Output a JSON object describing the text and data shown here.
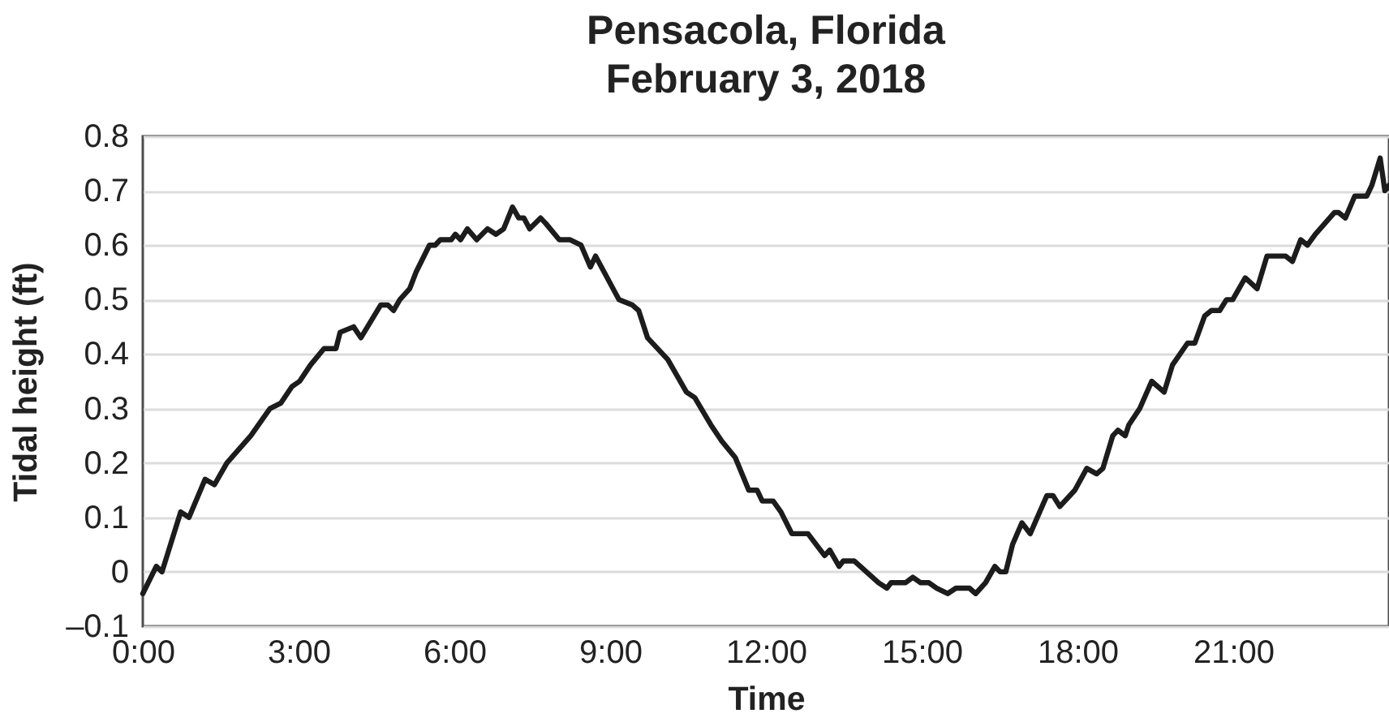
{
  "chart_data": {
    "type": "line",
    "title": "Pensacola, Florida",
    "subtitle": "February 3, 2018",
    "xlabel": "Time",
    "ylabel": "Tidal height (ft)",
    "x": [
      0.0,
      0.26,
      0.37,
      0.73,
      0.89,
      1.2,
      1.38,
      1.62,
      2.08,
      2.45,
      2.66,
      2.87,
      3.02,
      3.23,
      3.49,
      3.72,
      3.8,
      4.06,
      4.2,
      4.58,
      4.72,
      4.83,
      4.95,
      5.14,
      5.26,
      5.52,
      5.63,
      5.73,
      5.94,
      6.02,
      6.12,
      6.25,
      6.43,
      6.64,
      6.8,
      6.95,
      7.12,
      7.24,
      7.34,
      7.45,
      7.66,
      7.76,
      8.02,
      8.23,
      8.44,
      8.62,
      8.72,
      9.17,
      9.43,
      9.55,
      9.72,
      10.11,
      10.47,
      10.63,
      10.94,
      11.15,
      11.41,
      11.67,
      11.83,
      11.93,
      12.14,
      12.29,
      12.5,
      12.81,
      13.13,
      13.23,
      13.41,
      13.49,
      13.7,
      14.17,
      14.33,
      14.41,
      14.69,
      14.83,
      14.98,
      15.14,
      15.29,
      15.5,
      15.66,
      15.92,
      16.04,
      16.23,
      16.41,
      16.51,
      16.62,
      16.75,
      16.93,
      17.09,
      17.41,
      17.53,
      17.66,
      17.95,
      18.18,
      18.37,
      18.49,
      18.68,
      18.78,
      18.92,
      18.99,
      19.2,
      19.43,
      19.67,
      19.83,
      20.12,
      20.26,
      20.45,
      20.58,
      20.74,
      20.87,
      20.99,
      21.23,
      21.46,
      21.65,
      22.01,
      22.14,
      22.3,
      22.43,
      22.58,
      22.95,
      23.03,
      23.16,
      23.34,
      23.57,
      23.67,
      23.83,
      23.92,
      24.0
    ],
    "series": [
      {
        "color": "#1c1c1c",
        "values": [
          -0.04,
          0.01,
          0.0,
          0.11,
          0.1,
          0.17,
          0.16,
          0.2,
          0.25,
          0.3,
          0.31,
          0.34,
          0.35,
          0.38,
          0.41,
          0.41,
          0.44,
          0.45,
          0.43,
          0.49,
          0.49,
          0.48,
          0.5,
          0.52,
          0.55,
          0.6,
          0.6,
          0.61,
          0.61,
          0.62,
          0.61,
          0.63,
          0.61,
          0.63,
          0.62,
          0.63,
          0.67,
          0.65,
          0.65,
          0.63,
          0.65,
          0.64,
          0.61,
          0.61,
          0.6,
          0.56,
          0.58,
          0.5,
          0.49,
          0.48,
          0.43,
          0.39,
          0.33,
          0.32,
          0.27,
          0.24,
          0.21,
          0.15,
          0.15,
          0.13,
          0.13,
          0.11,
          0.07,
          0.07,
          0.03,
          0.04,
          0.01,
          0.02,
          0.02,
          -0.02,
          -0.03,
          -0.02,
          -0.02,
          -0.01,
          -0.02,
          -0.02,
          -0.03,
          -0.04,
          -0.03,
          -0.03,
          -0.04,
          -0.02,
          0.01,
          0.0,
          0.0,
          0.05,
          0.09,
          0.07,
          0.14,
          0.14,
          0.12,
          0.15,
          0.19,
          0.18,
          0.19,
          0.25,
          0.26,
          0.25,
          0.27,
          0.3,
          0.35,
          0.33,
          0.38,
          0.42,
          0.42,
          0.47,
          0.48,
          0.48,
          0.5,
          0.5,
          0.54,
          0.52,
          0.58,
          0.58,
          0.57,
          0.61,
          0.6,
          0.62,
          0.66,
          0.66,
          0.65,
          0.69,
          0.69,
          0.71,
          0.76,
          0.7,
          0.71
        ]
      }
    ],
    "xlim": [
      0,
      24
    ],
    "xticks": [
      {
        "value": 0,
        "label": "0:00"
      },
      {
        "value": 3,
        "label": "3:00"
      },
      {
        "value": 6,
        "label": "6:00"
      },
      {
        "value": 9,
        "label": "9:00"
      },
      {
        "value": 12,
        "label": "12:00"
      },
      {
        "value": 15,
        "label": "15:00"
      },
      {
        "value": 18,
        "label": "18:00"
      },
      {
        "value": 21,
        "label": "21:00"
      }
    ],
    "ylim": [
      -0.1,
      0.8
    ],
    "yticks": [
      {
        "value": -0.1,
        "label": "–0.1"
      },
      0,
      0.1,
      0.2,
      0.3,
      0.4,
      0.5,
      0.6,
      0.7,
      0.8
    ],
    "grid": "y",
    "line_style": "solid"
  }
}
